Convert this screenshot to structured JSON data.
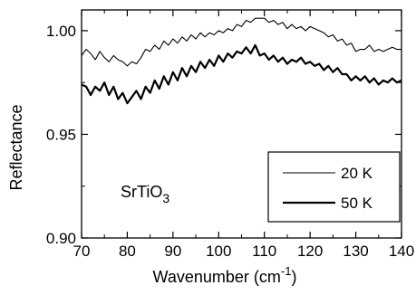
{
  "chart_data": {
    "type": "line",
    "xlabel_main": "Wavenumber (cm",
    "xlabel_sup": "-1",
    "xlabel_close": ")",
    "ylabel": "Reflectance",
    "xlim": [
      70,
      140
    ],
    "ylim": [
      0.9,
      1.01
    ],
    "xticks": [
      70,
      80,
      90,
      100,
      110,
      120,
      130,
      140
    ],
    "xtick_labels": [
      "70",
      "80",
      "90",
      "100",
      "110",
      "120",
      "130",
      "140"
    ],
    "yticks": [
      0.9,
      0.95,
      1.0
    ],
    "ytick_labels": [
      "0.90",
      "0.95",
      "1.00"
    ],
    "annotation": {
      "text": "SrTiO",
      "sub": "3"
    },
    "legend_position": "lower-right",
    "grid": false,
    "series": [
      {
        "name": "20 K",
        "stroke_width": 1.1,
        "x": [
          70,
          71,
          72,
          73,
          74,
          75,
          76,
          77,
          78,
          79,
          80,
          81,
          82,
          83,
          84,
          85,
          86,
          87,
          88,
          89,
          90,
          91,
          92,
          93,
          94,
          95,
          96,
          97,
          98,
          99,
          100,
          101,
          102,
          103,
          104,
          105,
          106,
          107,
          108,
          109,
          110,
          111,
          112,
          113,
          114,
          115,
          116,
          117,
          118,
          119,
          120,
          121,
          122,
          123,
          124,
          125,
          126,
          127,
          128,
          129,
          130,
          131,
          132,
          133,
          134,
          135,
          136,
          137,
          138,
          139,
          140
        ],
        "y": [
          0.988,
          0.991,
          0.989,
          0.986,
          0.99,
          0.987,
          0.985,
          0.988,
          0.986,
          0.985,
          0.983,
          0.985,
          0.984,
          0.987,
          0.991,
          0.99,
          0.993,
          0.991,
          0.995,
          0.993,
          0.996,
          0.994,
          0.997,
          0.995,
          0.998,
          0.996,
          0.999,
          0.997,
          0.999,
          0.998,
          1.0,
          0.999,
          1.001,
          1.0,
          1.003,
          1.002,
          1.005,
          1.004,
          1.006,
          1.006,
          1.006,
          1.004,
          1.005,
          1.003,
          1.004,
          1.001,
          1.003,
          1.001,
          1.002,
          1.0,
          1.002,
          1.001,
          1.0,
          0.999,
          0.997,
          0.998,
          0.995,
          0.996,
          0.993,
          0.994,
          0.99,
          0.991,
          0.991,
          0.993,
          0.99,
          0.991,
          0.99,
          0.991,
          0.992,
          0.991,
          0.991
        ]
      },
      {
        "name": "50 K",
        "stroke_width": 2.2,
        "x": [
          70,
          71,
          72,
          73,
          74,
          75,
          76,
          77,
          78,
          79,
          80,
          81,
          82,
          83,
          84,
          85,
          86,
          87,
          88,
          89,
          90,
          91,
          92,
          93,
          94,
          95,
          96,
          97,
          98,
          99,
          100,
          101,
          102,
          103,
          104,
          105,
          106,
          107,
          108,
          109,
          110,
          111,
          112,
          113,
          114,
          115,
          116,
          117,
          118,
          119,
          120,
          121,
          122,
          123,
          124,
          125,
          126,
          127,
          128,
          129,
          130,
          131,
          132,
          133,
          134,
          135,
          136,
          137,
          138,
          139,
          140
        ],
        "y": [
          0.974,
          0.973,
          0.969,
          0.973,
          0.971,
          0.975,
          0.969,
          0.973,
          0.967,
          0.97,
          0.965,
          0.968,
          0.971,
          0.967,
          0.973,
          0.97,
          0.976,
          0.972,
          0.978,
          0.974,
          0.98,
          0.976,
          0.982,
          0.978,
          0.983,
          0.98,
          0.985,
          0.982,
          0.986,
          0.983,
          0.988,
          0.985,
          0.989,
          0.987,
          0.99,
          0.989,
          0.992,
          0.989,
          0.993,
          0.988,
          0.989,
          0.986,
          0.988,
          0.985,
          0.987,
          0.984,
          0.986,
          0.985,
          0.987,
          0.984,
          0.985,
          0.983,
          0.984,
          0.981,
          0.983,
          0.98,
          0.982,
          0.979,
          0.979,
          0.976,
          0.978,
          0.976,
          0.978,
          0.975,
          0.977,
          0.974,
          0.976,
          0.975,
          0.977,
          0.975,
          0.976
        ]
      }
    ]
  }
}
